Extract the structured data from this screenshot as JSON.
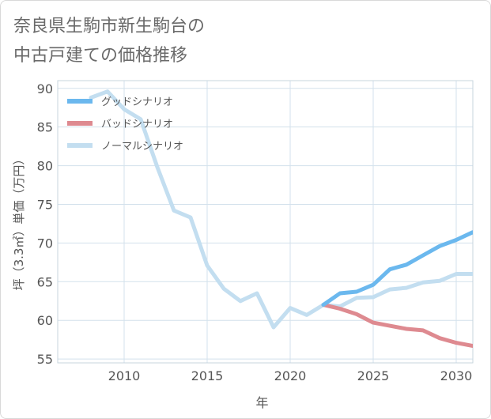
{
  "chart_data": {
    "type": "line",
    "title_lines": [
      "奈良県生駒市新生駒台の",
      "中古戸建ての価格推移"
    ],
    "xlabel": "年",
    "ylabel": "坪（3.3㎡）単価（万円）",
    "xlim": [
      2006,
      2031
    ],
    "ylim": [
      54.5,
      91
    ],
    "x_ticks": [
      2010,
      2015,
      2020,
      2025,
      2030
    ],
    "y_ticks": [
      55,
      60,
      65,
      70,
      75,
      80,
      85,
      90
    ],
    "grid": true,
    "legend_position": "top-left",
    "series": [
      {
        "name": "グッドシナリオ",
        "color": "#6bb8ee",
        "x": [
          2022,
          2023,
          2024,
          2025,
          2026,
          2027,
          2028,
          2029,
          2030,
          2031
        ],
        "values": [
          62.0,
          63.5,
          63.7,
          64.6,
          66.6,
          67.2,
          68.4,
          69.6,
          70.4,
          71.4
        ]
      },
      {
        "name": "バッドシナリオ",
        "color": "#de8a90",
        "x": [
          2022,
          2023,
          2024,
          2025,
          2026,
          2027,
          2028,
          2029,
          2030,
          2031
        ],
        "values": [
          62.0,
          61.5,
          60.8,
          59.7,
          59.3,
          58.9,
          58.7,
          57.7,
          57.1,
          56.7
        ]
      },
      {
        "name": "ノーマルシナリオ",
        "color": "#c3def0",
        "x": [
          2008,
          2009,
          2010,
          2011,
          2012,
          2013,
          2014,
          2015,
          2016,
          2017,
          2018,
          2019,
          2020,
          2021,
          2022,
          2023,
          2024,
          2025,
          2026,
          2027,
          2028,
          2029,
          2030,
          2031
        ],
        "values": [
          88.8,
          89.6,
          87.3,
          86.0,
          79.8,
          74.2,
          73.3,
          67.1,
          64.1,
          62.5,
          63.5,
          59.1,
          61.6,
          60.7,
          62.0,
          61.8,
          62.9,
          63.0,
          64.0,
          64.2,
          64.9,
          65.1,
          66.0,
          66.0
        ]
      }
    ]
  }
}
